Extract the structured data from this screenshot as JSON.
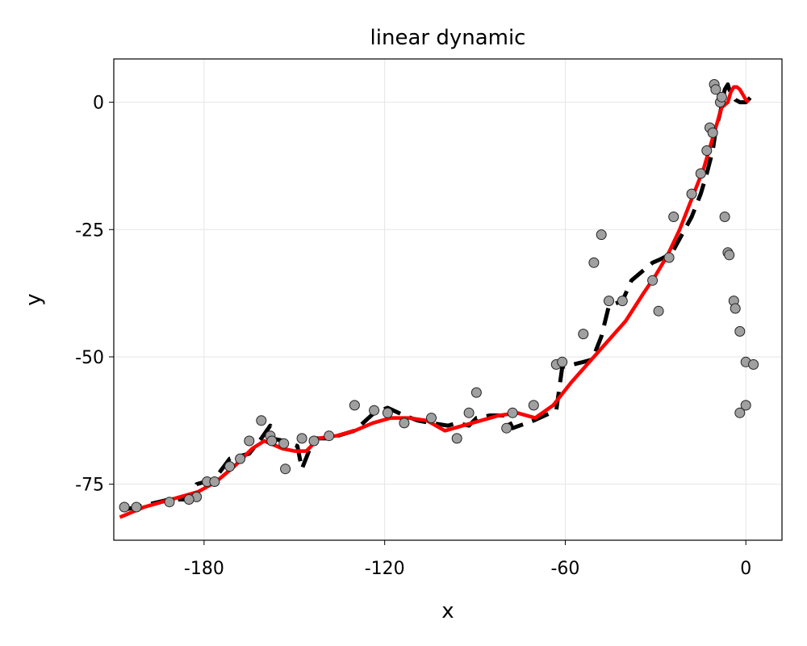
{
  "chart_data": {
    "type": "line",
    "title": "linear dynamic",
    "xlabel": "x",
    "ylabel": "y",
    "xlim": [
      -210,
      12
    ],
    "ylim": [
      -86,
      8.5
    ],
    "xticks": [
      -180,
      -120,
      -60,
      0
    ],
    "yticks": [
      0,
      -25,
      -50,
      -75
    ],
    "xtick_labels": [
      "-180",
      "-120",
      "-60",
      "0"
    ],
    "ytick_labels": [
      "0",
      "-25",
      "-50",
      "-75"
    ],
    "grid": true,
    "legend": "none",
    "colors": {
      "filtered": "#ff0000",
      "true_path": "#000000",
      "observations_fill": "#a0a0a0",
      "observations_edge": "#222222"
    },
    "series": [
      {
        "style": "scatter",
        "x": [
          -206.5,
          -202.5,
          -191.5,
          -182.5,
          -185.0,
          -179.0,
          -176.5,
          -168.0,
          -171.5,
          -161.0,
          -165.0,
          -158.0,
          -157.5,
          -153.5,
          -153.0,
          -147.5,
          -143.5,
          -138.5,
          -130.0,
          -123.5,
          -119.0,
          -113.5,
          -104.5,
          -96.0,
          -92.0,
          -89.5,
          -79.5,
          -77.5,
          -70.5,
          -63.0,
          -61.0,
          -54.0,
          -50.5,
          -48.0,
          -45.5,
          -41.0,
          -31.0,
          -29.0,
          -25.5,
          -24.0,
          -18.0,
          -15.0,
          -13.0,
          -12.0,
          -11.0,
          -10.5,
          -10.0,
          -8.5,
          -8.0,
          -7.0,
          -6.0,
          -5.5,
          -4.0,
          -3.5,
          -2.0,
          0.0,
          2.5,
          0.0,
          -2.0
        ],
        "y": [
          -79.5,
          -79.5,
          -78.5,
          -77.5,
          -78.0,
          -74.5,
          -74.5,
          -70.0,
          -71.5,
          -62.5,
          -66.5,
          -65.5,
          -66.5,
          -67.0,
          -72.0,
          -66.0,
          -66.5,
          -65.5,
          -59.5,
          -60.5,
          -61.0,
          -63.0,
          -62.0,
          -66.0,
          -61.0,
          -57.0,
          -64.0,
          -61.0,
          -59.5,
          -51.5,
          -51.0,
          -45.5,
          -31.5,
          -26.0,
          -39.0,
          -39.0,
          -35.0,
          -41.0,
          -30.5,
          -22.5,
          -18.0,
          -14.0,
          -9.5,
          -5.0,
          -6.0,
          3.5,
          2.5,
          0.0,
          1.0,
          -22.5,
          -29.5,
          -30.0,
          -39.0,
          -40.5,
          -45.0,
          -51.0,
          -51.5,
          -59.5,
          -61.0
        ]
      },
      {
        "style": "dashed",
        "x": [
          -206.5,
          -202.5,
          -191.5,
          -185.0,
          -182.5,
          -176.5,
          -171.5,
          -165.0,
          -161.0,
          -158.0,
          -157.5,
          -153.5,
          -149.0,
          -147.5,
          -143.5,
          -138.5,
          -130.0,
          -123.5,
          -119.0,
          -113.5,
          -109.0,
          -104.5,
          -99.0,
          -96.0,
          -92.0,
          -89.5,
          -85.0,
          -79.5,
          -77.5,
          -70.5,
          -63.0,
          -61.0,
          -54.0,
          -51.0,
          -48.0,
          -45.5,
          -41.0,
          -38.0,
          -31.0,
          -29.0,
          -25.5,
          -24.0,
          -18.0,
          -15.0,
          -13.0,
          -11.0,
          -10.0,
          -8.5,
          -7.0,
          -6.0,
          -5.5,
          -4.0,
          -3.5,
          -2.0,
          0.0,
          2.5
        ],
        "y": [
          -80.0,
          -79.5,
          -78.0,
          -78.0,
          -75.0,
          -74.0,
          -70.0,
          -69.0,
          -66.0,
          -63.5,
          -66.0,
          -66.5,
          -67.5,
          -72.0,
          -66.0,
          -66.0,
          -64.5,
          -61.0,
          -60.0,
          -61.5,
          -62.5,
          -63.0,
          -63.5,
          -63.0,
          -63.5,
          -62.0,
          -61.5,
          -61.5,
          -64.0,
          -62.5,
          -60.5,
          -52.0,
          -51.0,
          -50.5,
          -46.0,
          -40.0,
          -39.0,
          -35.0,
          -31.5,
          -31.0,
          -30.0,
          -29.0,
          -22.5,
          -18.0,
          -14.0,
          -9.5,
          -5.5,
          -2.0,
          2.5,
          3.5,
          2.5,
          1.0,
          0.5,
          0.0,
          0.0,
          1.5
        ]
      },
      {
        "style": "solid",
        "x": [
          -208.0,
          -200.0,
          -194.0,
          -188.0,
          -182.0,
          -176.0,
          -170.0,
          -164.0,
          -160.0,
          -154.0,
          -150.0,
          -146.0,
          -142.0,
          -136.0,
          -130.0,
          -124.0,
          -118.0,
          -112.0,
          -106.0,
          -100.0,
          -94.0,
          -88.0,
          -82.0,
          -76.0,
          -70.0,
          -64.0,
          -58.0,
          -52.0,
          -46.0,
          -40.0,
          -34.0,
          -30.0,
          -26.0,
          -22.0,
          -18.0,
          -14.0,
          -10.0,
          -8.0,
          -6.0,
          -5.0,
          -4.0,
          -3.0,
          -2.0,
          -1.0,
          0.0,
          1.0
        ],
        "y": [
          -81.5,
          -79.5,
          -78.5,
          -77.5,
          -76.5,
          -74.5,
          -71.5,
          -68.0,
          -66.5,
          -68.0,
          -68.5,
          -68.5,
          -66.0,
          -65.5,
          -64.5,
          -63.0,
          -62.0,
          -62.0,
          -62.5,
          -64.5,
          -63.5,
          -62.5,
          -61.5,
          -61.0,
          -62.0,
          -59.5,
          -55.0,
          -51.0,
          -47.0,
          -43.0,
          -37.5,
          -34.0,
          -30.0,
          -25.0,
          -19.0,
          -13.0,
          -5.0,
          -1.0,
          0.0,
          2.0,
          3.0,
          3.0,
          2.5,
          1.5,
          0.5,
          0.0
        ]
      }
    ]
  }
}
